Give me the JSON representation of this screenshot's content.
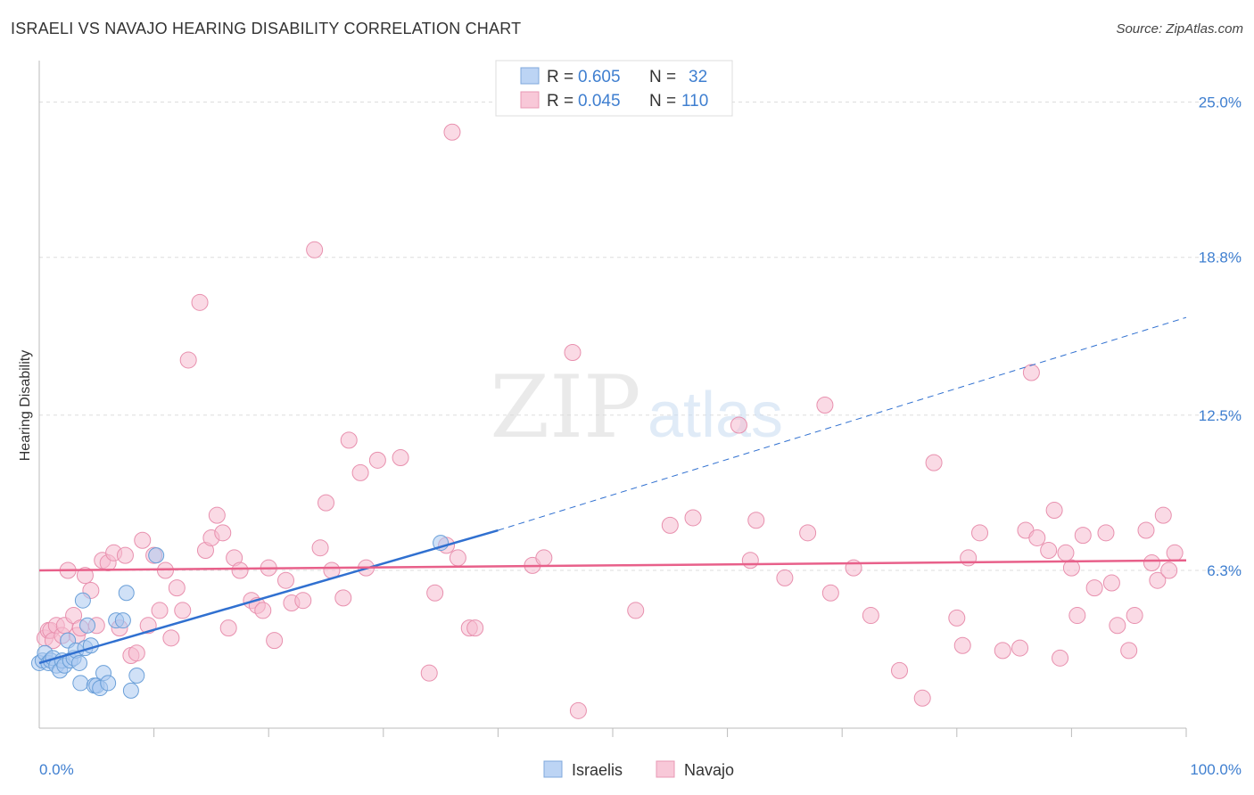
{
  "chart_data": {
    "type": "scatter",
    "title": "ISRAELI VS NAVAJO HEARING DISABILITY CORRELATION CHART",
    "source": "Source: ZipAtlas.com",
    "xlabel": "",
    "ylabel": "Hearing Disability",
    "xlim": [
      0,
      100
    ],
    "ylim": [
      0,
      26.3
    ],
    "x_tick_labels": [
      "0.0%",
      "100.0%"
    ],
    "y_ticks": [
      6.3,
      12.5,
      18.8,
      25.0
    ],
    "y_tick_labels": [
      "6.3%",
      "12.5%",
      "18.8%",
      "25.0%"
    ],
    "watermark": {
      "zip": "ZIP",
      "atlas": "atlas"
    },
    "legend_top": [
      {
        "r_label": "R =",
        "r_value": "0.605",
        "n_label": "N =",
        "n_value": "32"
      },
      {
        "r_label": "R =",
        "r_value": "0.045",
        "n_label": "N =",
        "n_value": "110"
      }
    ],
    "legend_bottom": [
      "Israelis",
      "Navajo"
    ],
    "colors": {
      "israelis_fill": "#aac8f0",
      "israelis_stroke": "#6a9fd8",
      "israelis_line": "#3070d0",
      "navajo_fill": "#f6bcd0",
      "navajo_stroke": "#e890ae",
      "navajo_line": "#e8608a",
      "tick_label": "#3f7fd0",
      "grid": "#dddddd"
    },
    "series": [
      {
        "name": "Israelis",
        "x": [
          0.0,
          0.3,
          0.5,
          0.8,
          1.0,
          1.2,
          1.5,
          1.8,
          2.0,
          2.2,
          2.5,
          2.7,
          3.0,
          3.2,
          3.5,
          3.6,
          3.8,
          4.0,
          4.2,
          4.5,
          4.8,
          5.0,
          5.3,
          5.6,
          6.0,
          6.7,
          7.3,
          7.6,
          8.0,
          8.5,
          10.2,
          35.0
        ],
        "y": [
          2.6,
          2.7,
          3.0,
          2.6,
          2.7,
          2.8,
          2.5,
          2.3,
          2.7,
          2.5,
          3.5,
          2.7,
          2.8,
          3.1,
          2.6,
          1.8,
          5.1,
          3.2,
          4.1,
          3.3,
          1.7,
          1.7,
          1.6,
          2.2,
          1.8,
          4.3,
          4.3,
          5.4,
          1.5,
          2.1,
          6.9,
          7.4
        ]
      },
      {
        "name": "Navajo",
        "x": [
          0.5,
          0.8,
          1.0,
          1.2,
          1.5,
          2.0,
          2.2,
          2.5,
          3.0,
          3.3,
          3.6,
          4.0,
          4.5,
          5.0,
          5.5,
          6.0,
          6.5,
          7.0,
          7.5,
          8.0,
          8.5,
          9.0,
          9.5,
          10.0,
          10.5,
          11.0,
          11.5,
          12.0,
          12.5,
          13.0,
          14.0,
          14.5,
          15.0,
          15.5,
          16.0,
          16.5,
          17.0,
          17.5,
          18.5,
          19.0,
          19.5,
          20.0,
          20.5,
          21.5,
          22.0,
          23.0,
          24.0,
          24.5,
          25.0,
          25.5,
          26.5,
          27.0,
          28.0,
          28.5,
          29.5,
          31.5,
          34.0,
          34.5,
          35.5,
          36.0,
          36.5,
          37.5,
          38.0,
          43.0,
          44.0,
          46.5,
          47.0,
          52.0,
          55.0,
          57.0,
          62.0,
          61.0,
          62.5,
          65.0,
          67.0,
          68.5,
          69.0,
          71.0,
          72.5,
          75.0,
          77.0,
          78.0,
          80.0,
          80.5,
          81.0,
          82.0,
          84.0,
          85.5,
          86.0,
          86.5,
          87.0,
          88.0,
          88.5,
          89.0,
          89.5,
          90.0,
          90.5,
          91.0,
          92.0,
          93.0,
          93.5,
          94.0,
          95.0,
          95.5,
          96.5,
          97.0,
          97.5,
          98.0,
          98.5,
          99.0
        ],
        "y": [
          3.6,
          3.9,
          3.9,
          3.5,
          4.1,
          3.7,
          4.1,
          6.3,
          4.5,
          3.7,
          4.0,
          6.1,
          5.5,
          4.1,
          6.7,
          6.6,
          7.0,
          4.0,
          6.9,
          2.9,
          3.0,
          7.5,
          4.1,
          6.9,
          4.7,
          6.3,
          3.6,
          5.6,
          4.7,
          14.7,
          17.0,
          7.1,
          7.6,
          8.5,
          7.8,
          4.0,
          6.8,
          6.3,
          5.1,
          4.9,
          4.7,
          6.4,
          3.5,
          5.9,
          5.0,
          5.1,
          19.1,
          7.2,
          9.0,
          6.3,
          5.2,
          11.5,
          10.2,
          6.4,
          10.7,
          10.8,
          2.2,
          5.4,
          7.3,
          23.8,
          6.8,
          4.0,
          4.0,
          6.5,
          6.8,
          15.0,
          0.7,
          4.7,
          8.1,
          8.4,
          6.7,
          12.1,
          8.3,
          6.0,
          7.8,
          12.9,
          5.4,
          6.4,
          4.5,
          2.3,
          1.2,
          10.6,
          4.4,
          3.3,
          6.8,
          7.8,
          3.1,
          3.2,
          7.9,
          14.2,
          7.6,
          7.1,
          8.7,
          2.8,
          7.0,
          6.4,
          4.5,
          7.7,
          5.6,
          7.8,
          5.8,
          4.1,
          3.1,
          4.5,
          7.9,
          6.6,
          5.9,
          8.5,
          6.3,
          7.0
        ]
      }
    ],
    "trend_lines": [
      {
        "series": "Israelis",
        "from": [
          0,
          2.6
        ],
        "to": [
          40,
          7.9
        ],
        "dashed_to": [
          100,
          16.4
        ]
      },
      {
        "series": "Navajo",
        "from": [
          0,
          6.3
        ],
        "to": [
          100,
          6.7
        ]
      }
    ]
  }
}
